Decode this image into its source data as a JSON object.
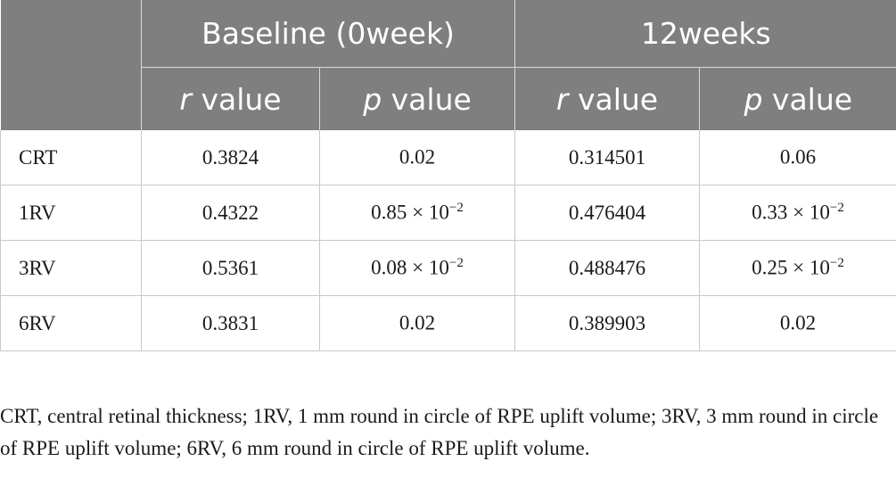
{
  "table": {
    "group_headers": [
      "",
      "Baseline (0week)",
      "12weeks"
    ],
    "sub_headers": [
      {
        "italic": "r",
        "rest": " value"
      },
      {
        "italic": "p",
        "rest": " value"
      },
      {
        "italic": "r",
        "rest": " value"
      },
      {
        "italic": "p",
        "rest": " value"
      }
    ],
    "rows": [
      {
        "label": "CRT",
        "b_r": "0.3824",
        "b_p_mant": "0.02",
        "b_p_exp": "",
        "w_r": "0.314501",
        "w_p_mant": "0.06",
        "w_p_exp": ""
      },
      {
        "label": "1RV",
        "b_r": "0.4322",
        "b_p_mant": "0.85 × 10",
        "b_p_exp": "−2",
        "w_r": "0.476404",
        "w_p_mant": "0.33 × 10",
        "w_p_exp": "−2"
      },
      {
        "label": "3RV",
        "b_r": "0.5361",
        "b_p_mant": "0.08 × 10",
        "b_p_exp": "−2",
        "w_r": "0.488476",
        "w_p_mant": "0.25 × 10",
        "w_p_exp": "−2"
      },
      {
        "label": "6RV",
        "b_r": "0.3831",
        "b_p_mant": "0.02",
        "b_p_exp": "",
        "w_r": "0.389903",
        "w_p_mant": "0.02",
        "w_p_exp": ""
      }
    ]
  },
  "footnote": "CRT, central retinal thickness; 1RV, 1 mm round in circle of RPE uplift volume; 3RV, 3 mm round in circle of RPE uplift volume; 6RV, 6 mm round in circle of RPE uplift volume."
}
